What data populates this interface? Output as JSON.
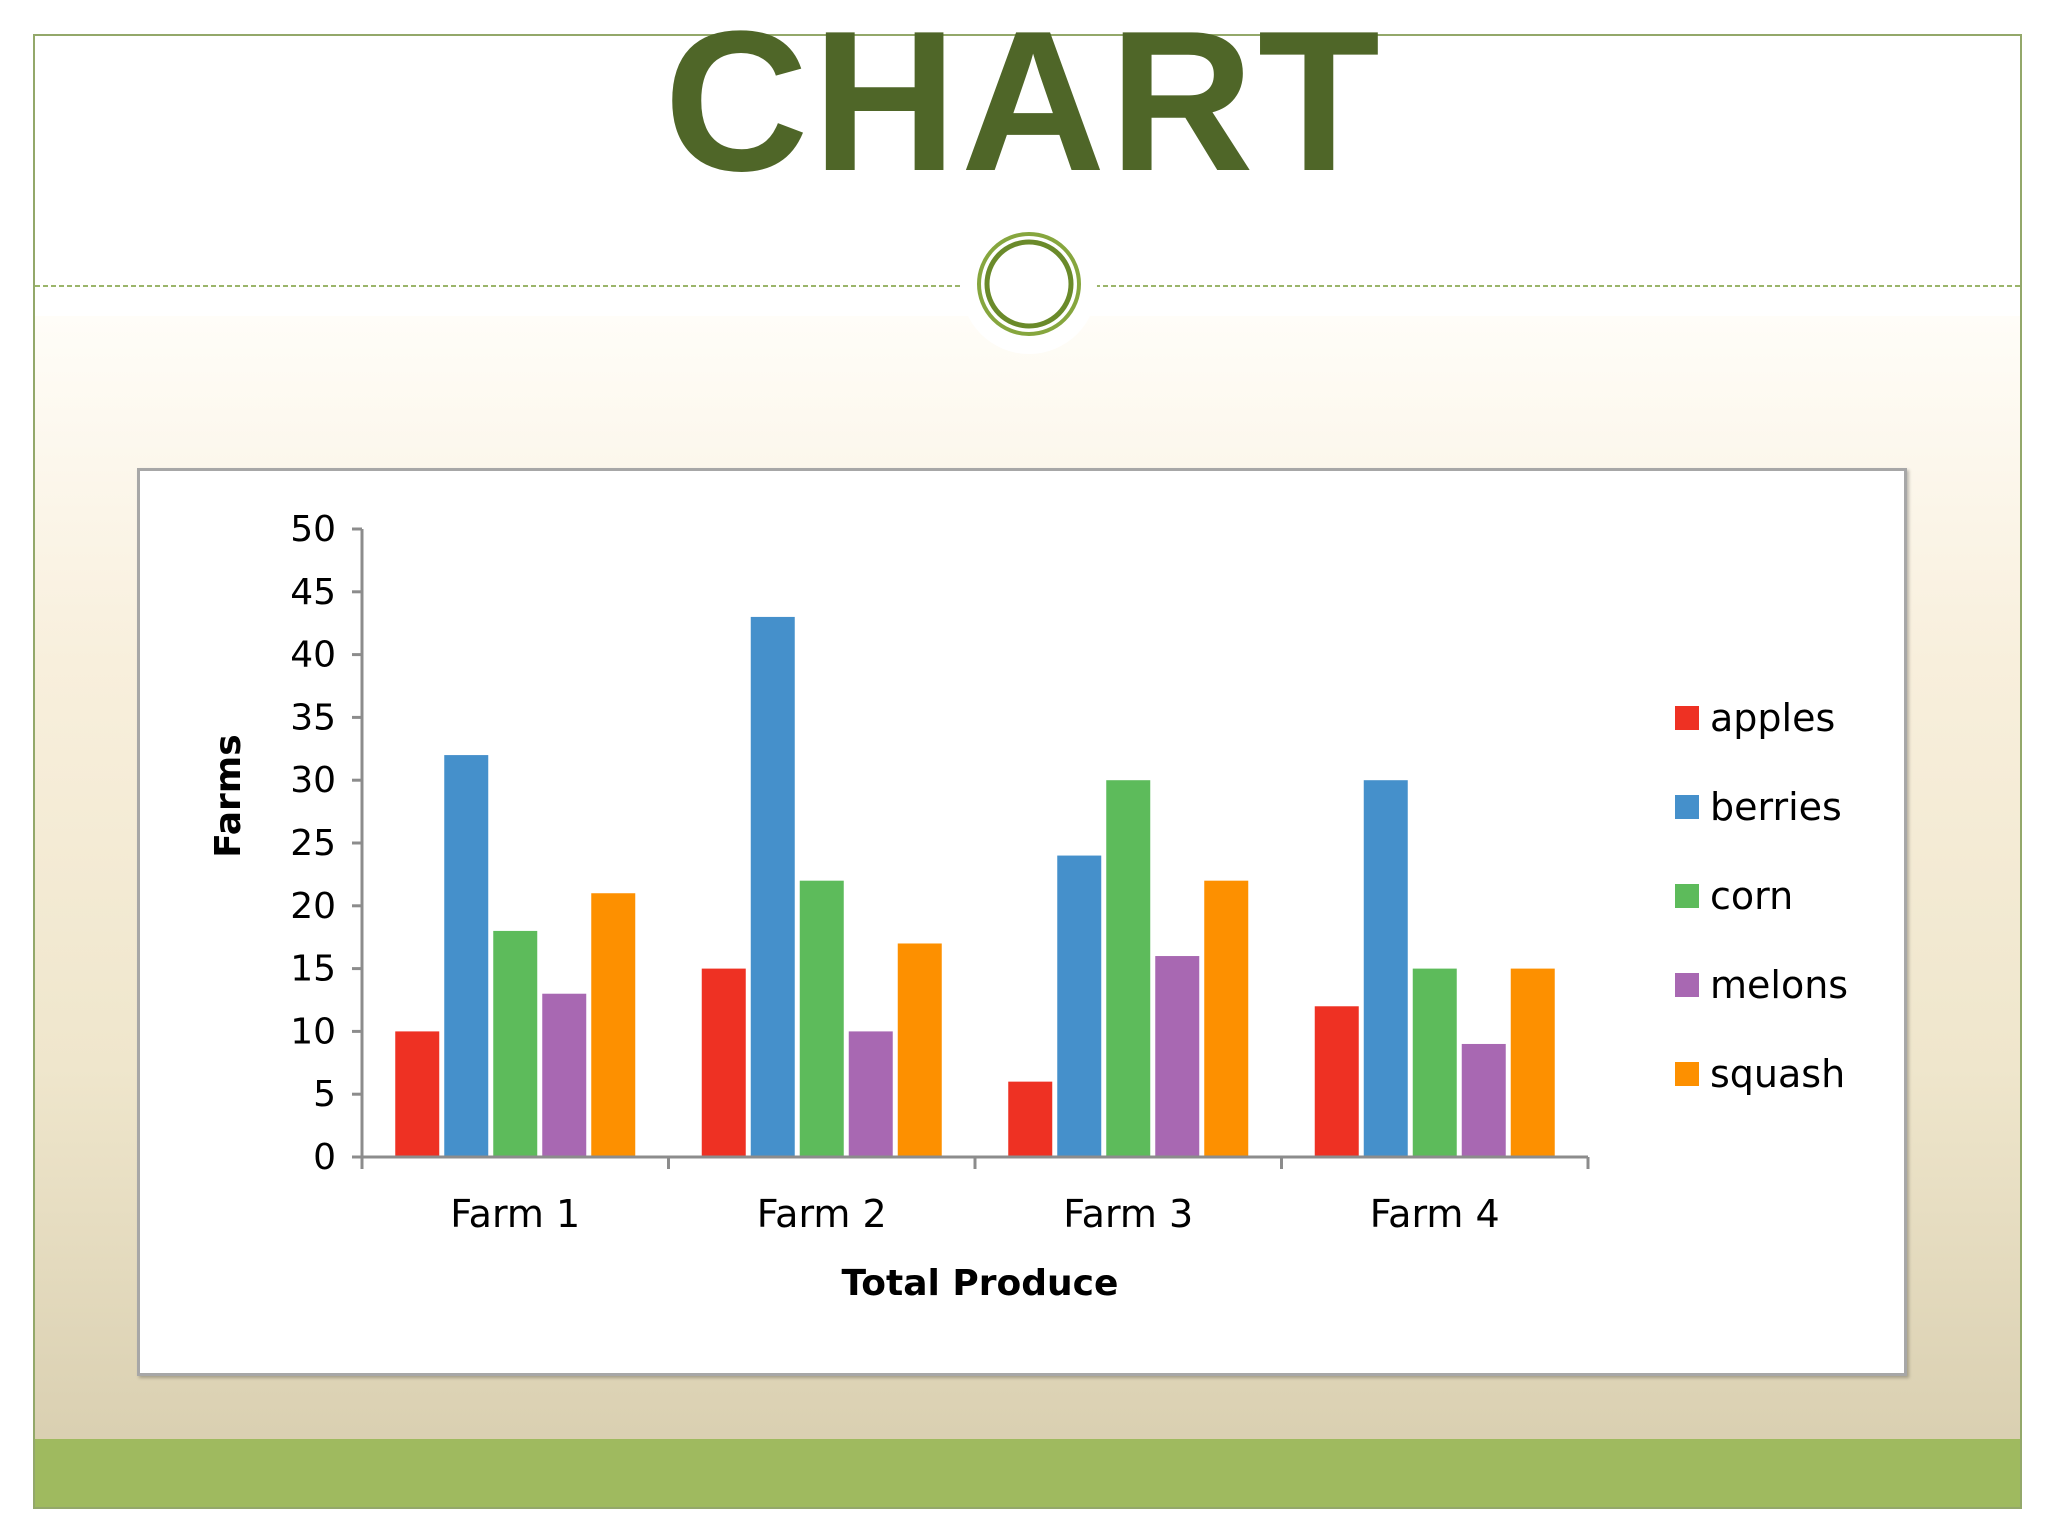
{
  "slide": {
    "title": "CHART",
    "colors": {
      "title": "#4f6628",
      "footer_band": "#9fba5f",
      "divider": "#9bb56a",
      "frame_border": "#93a86a"
    }
  },
  "chart_data": {
    "type": "bar",
    "title": "",
    "xlabel": "Total Produce",
    "ylabel": "Farms",
    "categories": [
      "Farm 1",
      "Farm 2",
      "Farm 3",
      "Farm 4"
    ],
    "series": [
      {
        "name": "apples",
        "color": "#ee3123",
        "values": [
          10,
          15,
          6,
          12
        ]
      },
      {
        "name": "berries",
        "color": "#4590cb",
        "values": [
          32,
          43,
          24,
          30
        ]
      },
      {
        "name": "corn",
        "color": "#5dbb5b",
        "values": [
          18,
          22,
          30,
          15
        ]
      },
      {
        "name": "melons",
        "color": "#a868b2",
        "values": [
          13,
          10,
          16,
          9
        ]
      },
      {
        "name": "squash",
        "color": "#fd9000",
        "values": [
          21,
          17,
          22,
          15
        ]
      }
    ],
    "ylim": [
      0,
      50
    ],
    "yticks": [
      0,
      5,
      10,
      15,
      20,
      25,
      30,
      35,
      40,
      45,
      50
    ],
    "grid": false,
    "legend": "right"
  }
}
